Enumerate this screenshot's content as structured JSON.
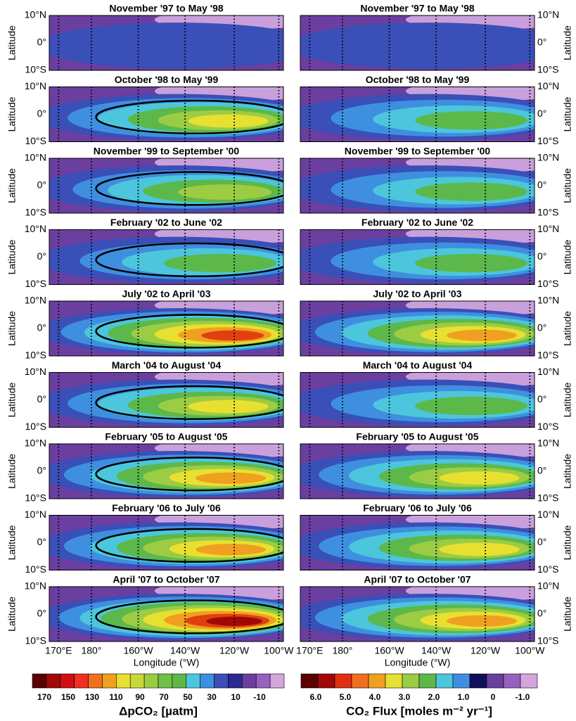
{
  "panels": [
    {
      "left_title": "November '97 to May '98",
      "right_title": "November '97 to May '98"
    },
    {
      "left_title": "October '98 to May '99",
      "right_title": "October '98 to May '99"
    },
    {
      "left_title": "November '99 to September '00",
      "right_title": "November '99 to September '00"
    },
    {
      "left_title": "February '02 to June '02",
      "right_title": "February '02 to June '02"
    },
    {
      "left_title": "July '02 to April '03",
      "right_title": "July '02 to April '03"
    },
    {
      "left_title": "March '04 to August '04",
      "right_title": "March '04 to August '04"
    },
    {
      "left_title": "February '05 to August '05",
      "right_title": "February '05 to August '05"
    },
    {
      "left_title": "February '06 to July '06",
      "right_title": "February '06 to July '06"
    },
    {
      "left_title": "April '07 to October '07",
      "right_title": "April '07 to October '07"
    }
  ],
  "axis": {
    "lat_labels": [
      "10°N",
      "0°",
      "10°S"
    ],
    "y_label": "Latitude",
    "lon_labels": [
      "170°E",
      "180°",
      "160°W",
      "140°W",
      "120°W",
      "100°W"
    ],
    "x_label": "Longitude (°W)"
  },
  "colorbars": [
    {
      "labels": [
        "170",
        "150",
        "130",
        "110",
        "90",
        "70",
        "50",
        "30",
        "10",
        "-10"
      ],
      "title": "ΔpCO₂ [µatm]"
    },
    {
      "labels": [
        "6.0",
        "5.0",
        "4.0",
        "3.0",
        "2.0",
        "1.0",
        "0",
        "-1.0"
      ],
      "title": "CO₂ Flux [moles m⁻² yr⁻¹]"
    }
  ]
}
